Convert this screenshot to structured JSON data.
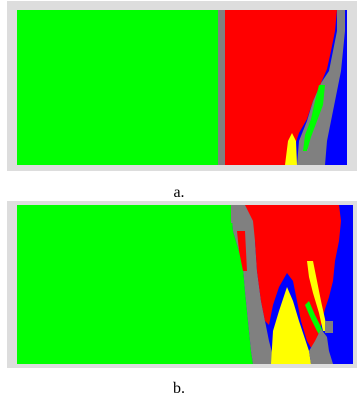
{
  "figure": {
    "panels": [
      {
        "label": "a."
      },
      {
        "label": "b."
      }
    ],
    "colors": {
      "frame": "#dddddd",
      "gray": "#808080",
      "green": "#00ff00",
      "red": "#ff0000",
      "yellow": "#ffff00",
      "blue": "#0000ff"
    }
  }
}
